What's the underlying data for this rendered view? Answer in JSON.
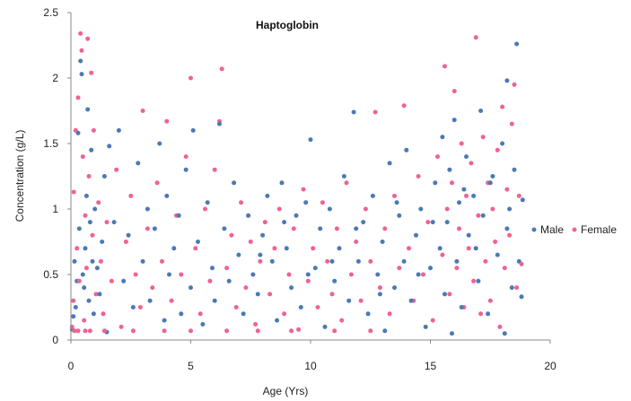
{
  "chart_data": {
    "type": "scatter",
    "title": "Haptoglobin",
    "xlabel": "Age (Yrs)",
    "ylabel": "Concentration (g/L)",
    "xlim": [
      0,
      20
    ],
    "ylim": [
      0,
      2.5
    ],
    "x_ticks": [
      "0",
      "5",
      "10",
      "15",
      "20"
    ],
    "y_ticks": [
      "0",
      "0.5",
      "1",
      "1.5",
      "2",
      "2.5"
    ],
    "grid": false,
    "legend_position": "right",
    "series": [
      {
        "name": "Male",
        "color": "#4a7ab5",
        "points": [
          [
            0.05,
            0.08
          ],
          [
            0.1,
            0.18
          ],
          [
            0.15,
            0.6
          ],
          [
            0.2,
            0.25
          ],
          [
            0.25,
            0.45
          ],
          [
            0.3,
            1.58
          ],
          [
            0.35,
            0.85
          ],
          [
            0.4,
            2.13
          ],
          [
            0.45,
            2.03
          ],
          [
            0.5,
            0.5
          ],
          [
            0.55,
            0.4
          ],
          [
            0.6,
            0.7
          ],
          [
            0.65,
            1.1
          ],
          [
            0.7,
            1.76
          ],
          [
            0.75,
            0.3
          ],
          [
            0.8,
            0.9
          ],
          [
            0.85,
            1.45
          ],
          [
            0.9,
            0.6
          ],
          [
            0.95,
            0.2
          ],
          [
            1.0,
            1.0
          ],
          [
            1.1,
            0.55
          ],
          [
            1.2,
            0.35
          ],
          [
            1.3,
            0.75
          ],
          [
            1.4,
            1.25
          ],
          [
            1.5,
            0.06
          ],
          [
            1.6,
            1.48
          ],
          [
            1.8,
            0.9
          ],
          [
            2.0,
            1.6
          ],
          [
            2.2,
            0.45
          ],
          [
            2.4,
            0.8
          ],
          [
            2.6,
            0.25
          ],
          [
            2.8,
            1.35
          ],
          [
            3.0,
            0.6
          ],
          [
            3.2,
            1.0
          ],
          [
            3.3,
            0.3
          ],
          [
            3.5,
            0.85
          ],
          [
            3.7,
            1.5
          ],
          [
            3.9,
            0.15
          ],
          [
            4.0,
            1.1
          ],
          [
            4.1,
            0.5
          ],
          [
            4.3,
            0.7
          ],
          [
            4.5,
            0.95
          ],
          [
            4.6,
            0.2
          ],
          [
            4.8,
            1.3
          ],
          [
            5.0,
            0.4
          ],
          [
            5.1,
            1.6
          ],
          [
            5.3,
            0.75
          ],
          [
            5.5,
            0.12
          ],
          [
            5.7,
            1.05
          ],
          [
            5.9,
            0.55
          ],
          [
            6.0,
            0.3
          ],
          [
            6.2,
            1.65
          ],
          [
            6.4,
            0.85
          ],
          [
            6.6,
            0.45
          ],
          [
            6.8,
            1.2
          ],
          [
            7.0,
            0.65
          ],
          [
            7.2,
            0.2
          ],
          [
            7.4,
            0.95
          ],
          [
            7.6,
            0.5
          ],
          [
            7.8,
            0.35
          ],
          [
            8.0,
            0.8
          ],
          [
            8.2,
            1.1
          ],
          [
            8.4,
            0.6
          ],
          [
            8.6,
            0.15
          ],
          [
            8.8,
            1.2
          ],
          [
            9.0,
            0.7
          ],
          [
            9.2,
            0.4
          ],
          [
            9.4,
            0.95
          ],
          [
            9.6,
            0.25
          ],
          [
            9.8,
            1.05
          ],
          [
            10.0,
            1.53
          ],
          [
            10.2,
            0.55
          ],
          [
            10.4,
            0.85
          ],
          [
            10.6,
            0.1
          ],
          [
            10.8,
            1.0
          ],
          [
            11.0,
            0.45
          ],
          [
            11.2,
            0.7
          ],
          [
            11.4,
            1.25
          ],
          [
            11.6,
            0.3
          ],
          [
            11.8,
            1.74
          ],
          [
            12.0,
            0.6
          ],
          [
            12.2,
            0.9
          ],
          [
            12.4,
            0.2
          ],
          [
            12.6,
            1.1
          ],
          [
            12.8,
            0.5
          ],
          [
            13.0,
            0.75
          ],
          [
            13.1,
            0.07
          ],
          [
            13.3,
            1.35
          ],
          [
            13.5,
            0.4
          ],
          [
            13.7,
            0.95
          ],
          [
            13.9,
            0.6
          ],
          [
            14.0,
            1.45
          ],
          [
            14.2,
            0.3
          ],
          [
            14.4,
            0.8
          ],
          [
            14.6,
            1.0
          ],
          [
            14.8,
            0.1
          ],
          [
            15.0,
            0.55
          ],
          [
            15.2,
            1.2
          ],
          [
            15.4,
            0.7
          ],
          [
            15.5,
            1.55
          ],
          [
            15.6,
            0.35
          ],
          [
            15.7,
            0.9
          ],
          [
            15.8,
            1.3
          ],
          [
            15.9,
            0.05
          ],
          [
            16.0,
            1.68
          ],
          [
            16.1,
            0.6
          ],
          [
            16.2,
            1.05
          ],
          [
            16.3,
            0.25
          ],
          [
            16.5,
            1.4
          ],
          [
            16.6,
            0.8
          ],
          [
            16.8,
            1.1
          ],
          [
            17.0,
            0.45
          ],
          [
            17.1,
            1.75
          ],
          [
            17.2,
            0.95
          ],
          [
            17.4,
            0.2
          ],
          [
            17.6,
            1.25
          ],
          [
            17.8,
            0.65
          ],
          [
            18.0,
            1.5
          ],
          [
            18.1,
            0.05
          ],
          [
            18.2,
            1.98
          ],
          [
            18.3,
            1.0
          ],
          [
            18.4,
            0.4
          ],
          [
            18.5,
            1.3
          ],
          [
            18.6,
            2.26
          ],
          [
            18.7,
            0.6
          ],
          [
            18.8,
            0.33
          ],
          [
            18.85,
            1.07
          ],
          [
            18.2,
            0.85
          ],
          [
            17.5,
            1.2
          ],
          [
            16.9,
            0.7
          ],
          [
            16.4,
            1.15
          ],
          [
            15.1,
            0.9
          ],
          [
            14.5,
            0.5
          ],
          [
            13.6,
            1.05
          ],
          [
            12.9,
            0.35
          ],
          [
            11.9,
            0.85
          ],
          [
            10.9,
            0.6
          ],
          [
            9.9,
            0.5
          ],
          [
            8.9,
            0.9
          ],
          [
            7.9,
            0.65
          ]
        ]
      },
      {
        "name": "Female",
        "color": "#f06292",
        "points": [
          [
            0.05,
            0.1
          ],
          [
            0.1,
            0.3
          ],
          [
            0.12,
            1.13
          ],
          [
            0.15,
            0.07
          ],
          [
            0.2,
            1.6
          ],
          [
            0.25,
            0.7
          ],
          [
            0.3,
            1.85
          ],
          [
            0.35,
            0.45
          ],
          [
            0.4,
            2.34
          ],
          [
            0.45,
            2.21
          ],
          [
            0.5,
            1.4
          ],
          [
            0.55,
            0.15
          ],
          [
            0.6,
            0.95
          ],
          [
            0.65,
            0.55
          ],
          [
            0.7,
            2.3
          ],
          [
            0.75,
            1.25
          ],
          [
            0.8,
            0.07
          ],
          [
            0.85,
            2.04
          ],
          [
            0.9,
            0.8
          ],
          [
            0.95,
            1.6
          ],
          [
            1.05,
            0.35
          ],
          [
            1.15,
            1.05
          ],
          [
            1.25,
            0.6
          ],
          [
            1.35,
            0.2
          ],
          [
            1.5,
            0.9
          ],
          [
            1.7,
            0.45
          ],
          [
            1.9,
            1.3
          ],
          [
            2.1,
            0.1
          ],
          [
            2.3,
            0.75
          ],
          [
            2.5,
            1.1
          ],
          [
            2.7,
            0.5
          ],
          [
            2.9,
            0.25
          ],
          [
            3.0,
            1.75
          ],
          [
            3.2,
            0.85
          ],
          [
            3.4,
            0.4
          ],
          [
            3.6,
            1.2
          ],
          [
            3.8,
            0.6
          ],
          [
            4.0,
            1.67
          ],
          [
            4.2,
            0.3
          ],
          [
            4.4,
            0.95
          ],
          [
            4.6,
            0.5
          ],
          [
            4.8,
            1.4
          ],
          [
            5.0,
            2.0
          ],
          [
            5.2,
            0.7
          ],
          [
            5.4,
            0.2
          ],
          [
            5.6,
            1.0
          ],
          [
            5.8,
            0.45
          ],
          [
            6.0,
            1.3
          ],
          [
            6.2,
            1.67
          ],
          [
            6.3,
            2.07
          ],
          [
            6.5,
            0.55
          ],
          [
            6.7,
            0.8
          ],
          [
            6.9,
            0.25
          ],
          [
            7.1,
            1.05
          ],
          [
            7.3,
            0.4
          ],
          [
            7.5,
            0.75
          ],
          [
            7.7,
            0.12
          ],
          [
            7.9,
            0.6
          ],
          [
            8.1,
            0.9
          ],
          [
            8.3,
            0.35
          ],
          [
            8.5,
            0.7
          ],
          [
            8.7,
            1.0
          ],
          [
            8.9,
            0.2
          ],
          [
            9.1,
            0.5
          ],
          [
            9.3,
            0.85
          ],
          [
            9.5,
            0.08
          ],
          [
            9.7,
            1.15
          ],
          [
            9.9,
            0.45
          ],
          [
            10.1,
            0.7
          ],
          [
            10.3,
            0.25
          ],
          [
            10.5,
            1.05
          ],
          [
            10.7,
            0.6
          ],
          [
            10.9,
            0.35
          ],
          [
            11.1,
            0.85
          ],
          [
            11.3,
            0.15
          ],
          [
            11.5,
            1.2
          ],
          [
            11.7,
            0.5
          ],
          [
            11.9,
            0.75
          ],
          [
            12.1,
            0.3
          ],
          [
            12.3,
            1.0
          ],
          [
            12.5,
            0.6
          ],
          [
            12.7,
            1.74
          ],
          [
            12.9,
            0.4
          ],
          [
            13.1,
            0.85
          ],
          [
            13.3,
            0.2
          ],
          [
            13.5,
            1.1
          ],
          [
            13.7,
            0.55
          ],
          [
            13.9,
            1.79
          ],
          [
            14.1,
            0.7
          ],
          [
            14.3,
            0.3
          ],
          [
            14.5,
            1.25
          ],
          [
            14.7,
            0.5
          ],
          [
            14.9,
            0.9
          ],
          [
            15.1,
            0.15
          ],
          [
            15.3,
            1.4
          ],
          [
            15.5,
            0.65
          ],
          [
            15.6,
            2.09
          ],
          [
            15.7,
            1.0
          ],
          [
            15.8,
            0.35
          ],
          [
            15.9,
            1.2
          ],
          [
            16.0,
            1.9
          ],
          [
            16.1,
            0.55
          ],
          [
            16.2,
            0.85
          ],
          [
            16.3,
            1.5
          ],
          [
            16.4,
            0.25
          ],
          [
            16.5,
            1.1
          ],
          [
            16.6,
            0.7
          ],
          [
            16.7,
            1.35
          ],
          [
            16.8,
            0.45
          ],
          [
            16.9,
            2.31
          ],
          [
            17.0,
            0.95
          ],
          [
            17.1,
            0.2
          ],
          [
            17.2,
            1.55
          ],
          [
            17.3,
            0.6
          ],
          [
            17.4,
            1.2
          ],
          [
            17.5,
            0.3
          ],
          [
            17.6,
            1.0
          ],
          [
            17.7,
            0.75
          ],
          [
            17.8,
            1.45
          ],
          [
            17.9,
            0.1
          ],
          [
            18.0,
            1.78
          ],
          [
            18.1,
            0.55
          ],
          [
            18.2,
            1.15
          ],
          [
            18.3,
            0.8
          ],
          [
            18.4,
            1.65
          ],
          [
            18.5,
            1.95
          ],
          [
            18.6,
            0.4
          ],
          [
            18.7,
            1.1
          ],
          [
            18.8,
            0.58
          ],
          [
            0.6,
            0.07
          ],
          [
            0.3,
            0.07
          ],
          [
            1.4,
            0.07
          ],
          [
            2.6,
            0.07
          ],
          [
            3.9,
            0.07
          ],
          [
            5.0,
            0.07
          ],
          [
            6.5,
            0.07
          ],
          [
            7.8,
            0.07
          ],
          [
            9.2,
            0.07
          ],
          [
            11.0,
            0.07
          ],
          [
            12.5,
            0.07
          ]
        ]
      }
    ]
  }
}
